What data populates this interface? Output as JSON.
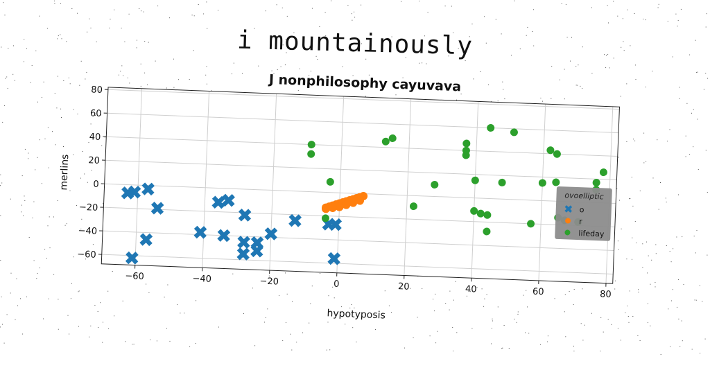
{
  "page_title": "i mountainously",
  "chart_data": {
    "type": "scatter",
    "title": "J nonphilosophy cayuvava",
    "xlabel": "hypotyposis",
    "ylabel": "merlins",
    "xlim": [
      -70,
      82
    ],
    "ylim": [
      -68,
      82
    ],
    "xticks": [
      -60,
      -40,
      -20,
      0,
      20,
      40,
      60,
      80
    ],
    "yticks": [
      -60,
      -40,
      -20,
      0,
      20,
      40,
      60,
      80
    ],
    "xtick_labels": [
      "−60",
      "−40",
      "−20",
      "0",
      "20",
      "40",
      "60",
      "80"
    ],
    "ytick_labels": [
      "−60",
      "−40",
      "−20",
      "0",
      "20",
      "40",
      "60",
      "80"
    ],
    "grid": true,
    "legend": {
      "title": "ovoelliptic",
      "placement": "center-right",
      "background": "#8c8c8c"
    },
    "series": [
      {
        "name": "o",
        "marker": "x",
        "color": "#1f77b4",
        "points": [
          [
            -63,
            -7
          ],
          [
            -61,
            -6
          ],
          [
            -57,
            -3
          ],
          [
            -54,
            -19
          ],
          [
            -57,
            -46
          ],
          [
            -61,
            -62
          ],
          [
            -41,
            -38
          ],
          [
            -36,
            -12
          ],
          [
            -33,
            -10
          ],
          [
            -34,
            -40
          ],
          [
            -28,
            -22
          ],
          [
            -28,
            -45
          ],
          [
            -28,
            -55
          ],
          [
            -24,
            -45
          ],
          [
            -24,
            -52
          ],
          [
            -20,
            -37
          ],
          [
            -13,
            -25
          ],
          [
            -3,
            -27
          ],
          [
            -1,
            -27
          ],
          [
            -1,
            -56
          ]
        ]
      },
      {
        "name": "r",
        "marker": "o",
        "color": "#ff7f0e",
        "points": [
          [
            -4,
            -13
          ],
          [
            -3,
            -12
          ],
          [
            -2,
            -11
          ],
          [
            -1,
            -10
          ],
          [
            0,
            -9
          ],
          [
            1,
            -8
          ],
          [
            2,
            -7
          ],
          [
            3,
            -6
          ],
          [
            4,
            -5
          ],
          [
            5,
            -4
          ],
          [
            6,
            -3
          ],
          [
            7,
            -2
          ],
          [
            6,
            -6
          ],
          [
            4,
            -8
          ],
          [
            2,
            -10
          ],
          [
            0,
            -12
          ],
          [
            -2,
            -13
          ],
          [
            -4,
            -14
          ]
        ]
      },
      {
        "name": "lifeday",
        "marker": "o",
        "color": "#2ca02c",
        "points": [
          [
            -9,
            40
          ],
          [
            -9,
            32
          ],
          [
            -3,
            9
          ],
          [
            -4,
            -22
          ],
          [
            13,
            45
          ],
          [
            15,
            48
          ],
          [
            22,
            -9
          ],
          [
            28,
            10
          ],
          [
            37,
            46
          ],
          [
            37,
            40
          ],
          [
            37,
            36
          ],
          [
            40,
            15
          ],
          [
            40,
            -11
          ],
          [
            42,
            -13
          ],
          [
            44,
            -14
          ],
          [
            44,
            -28
          ],
          [
            44,
            60
          ],
          [
            48,
            14
          ],
          [
            51,
            57
          ],
          [
            57,
            -20
          ],
          [
            60,
            15
          ],
          [
            62,
            43
          ],
          [
            64,
            40
          ],
          [
            64,
            16
          ],
          [
            65,
            -14
          ],
          [
            67,
            -16
          ],
          [
            76,
            17
          ],
          [
            76,
            11
          ],
          [
            78,
            26
          ],
          [
            71,
            -17
          ]
        ]
      }
    ]
  }
}
